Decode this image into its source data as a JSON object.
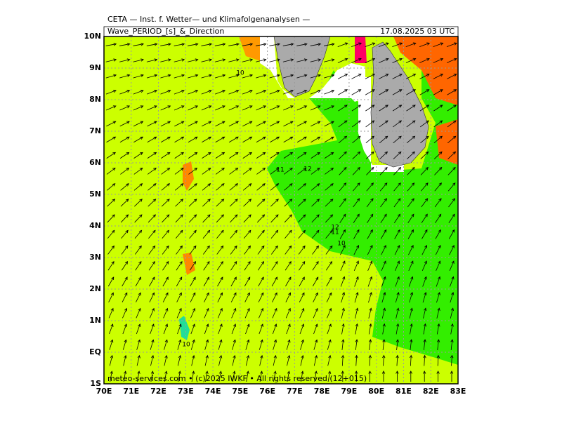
{
  "header": {
    "title": "CETA — Inst. f. Wetter— und Klimafolgenanalysen —",
    "product": "Wave_PERIOD_[s]_&_Direction",
    "datetime": "17.08.2025 03 UTC"
  },
  "axes": {
    "lat_labels": [
      "10N",
      "9N",
      "8N",
      "7N",
      "6N",
      "5N",
      "4N",
      "3N",
      "2N",
      "1N",
      "EQ",
      "1S"
    ],
    "lon_labels": [
      "70E",
      "71E",
      "72E",
      "73E",
      "74E",
      "75E",
      "76E",
      "77E",
      "78E",
      "79E",
      "80E",
      "81E",
      "82E",
      "83E"
    ]
  },
  "contour_labels": [
    "10",
    "11",
    "12",
    "12",
    "11",
    "10",
    "10"
  ],
  "footer": "meteo-services.com • (c)2025 IWKF • All rights reserved (12+015)"
}
